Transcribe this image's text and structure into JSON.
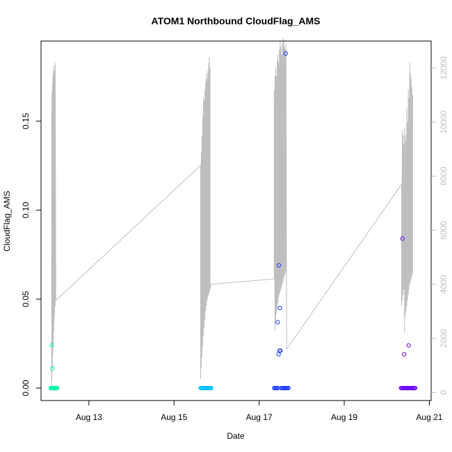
{
  "chart_data": {
    "type": "scatter",
    "title": "ATOM1 Northbound CloudFlag_AMS",
    "xlabel": "Date",
    "ylabel": "CloudFlag_AMS",
    "xlim": [
      "2016-08-11 21:00",
      "2016-08-21 01:00"
    ],
    "ylim": [
      -0.007,
      0.195
    ],
    "x_ticks": [
      "Aug 13",
      "Aug 15",
      "Aug 17",
      "Aug 19",
      "Aug 21"
    ],
    "x_tick_dates": [
      "2016-08-13",
      "2016-08-15",
      "2016-08-17",
      "2016-08-19",
      "2016-08-21"
    ],
    "y_ticks": [
      0.0,
      0.05,
      0.1,
      0.15
    ],
    "y_tick_labels": [
      "0.00",
      "0.05",
      "0.10",
      "0.15"
    ],
    "secondary_axis": {
      "series": "gray line",
      "color": "#bebebe",
      "ylim": [
        -300,
        13000
      ],
      "ticks": [
        0,
        2000,
        4000,
        6000,
        8000,
        10000,
        12000
      ],
      "tick_labels": [
        "0",
        "2000",
        "4000",
        "6000",
        "8000",
        "10000",
        "12000"
      ]
    },
    "line_x": [
      "2016-08-12 03:00",
      "2016-08-12 03:00",
      "2016-08-12 03:10",
      "2016-08-12 03:10",
      "2016-08-12 03:25",
      "2016-08-12 03:25",
      "2016-08-12 03:40",
      "2016-08-12 03:40",
      "2016-08-12 03:55",
      "2016-08-12 03:55",
      "2016-08-12 04:10",
      "2016-08-12 04:10",
      "2016-08-12 04:25",
      "2016-08-12 04:25",
      "2016-08-12 04:40",
      "2016-08-12 04:40",
      "2016-08-12 05:00",
      "2016-08-12 05:00",
      "2016-08-12 05:20",
      "2016-08-15 15:00",
      "2016-08-15 15:00",
      "2016-08-15 15:20",
      "2016-08-15 15:20",
      "2016-08-15 15:45",
      "2016-08-15 15:45",
      "2016-08-15 16:10",
      "2016-08-15 16:10",
      "2016-08-15 16:35",
      "2016-08-15 16:35",
      "2016-08-15 17:00",
      "2016-08-15 17:00",
      "2016-08-15 17:25",
      "2016-08-15 17:25",
      "2016-08-15 17:50",
      "2016-08-15 17:50",
      "2016-08-15 18:15",
      "2016-08-15 18:15",
      "2016-08-15 18:40",
      "2016-08-15 18:40",
      "2016-08-15 19:05",
      "2016-08-15 19:05",
      "2016-08-15 19:30",
      "2016-08-15 19:30",
      "2016-08-15 19:55",
      "2016-08-15 19:55",
      "2016-08-15 20:20",
      "2016-08-15 20:20",
      "2016-08-15 20:40",
      "2016-08-17 08:30",
      "2016-08-17 08:30",
      "2016-08-17 08:55",
      "2016-08-17 08:55",
      "2016-08-17 09:20",
      "2016-08-17 09:20",
      "2016-08-17 09:45",
      "2016-08-17 09:45",
      "2016-08-17 10:10",
      "2016-08-17 10:10",
      "2016-08-17 10:35",
      "2016-08-17 10:35",
      "2016-08-17 11:00",
      "2016-08-17 11:00",
      "2016-08-17 11:25",
      "2016-08-17 11:25",
      "2016-08-17 11:50",
      "2016-08-17 11:50",
      "2016-08-17 12:15",
      "2016-08-17 12:15",
      "2016-08-17 12:40",
      "2016-08-17 12:40",
      "2016-08-17 13:05",
      "2016-08-17 13:05",
      "2016-08-17 13:30",
      "2016-08-17 13:30",
      "2016-08-17 13:55",
      "2016-08-17 13:55",
      "2016-08-17 14:20",
      "2016-08-17 14:20",
      "2016-08-17 14:45",
      "2016-08-17 14:45",
      "2016-08-17 15:10",
      "2016-08-17 15:10",
      "2016-08-17 15:30",
      "2016-08-20 08:20",
      "2016-08-20 08:20",
      "2016-08-20 08:45",
      "2016-08-20 08:45",
      "2016-08-20 09:10",
      "2016-08-20 09:10",
      "2016-08-20 09:35",
      "2016-08-20 09:35",
      "2016-08-20 10:00",
      "2016-08-20 10:00",
      "2016-08-20 10:25",
      "2016-08-20 10:25",
      "2016-08-20 10:50",
      "2016-08-20 10:50",
      "2016-08-20 11:15",
      "2016-08-20 11:15",
      "2016-08-20 11:40",
      "2016-08-20 11:40",
      "2016-08-20 12:05",
      "2016-08-20 12:05",
      "2016-08-20 12:30",
      "2016-08-20 12:30",
      "2016-08-20 12:55",
      "2016-08-20 12:55",
      "2016-08-20 13:20",
      "2016-08-20 13:20",
      "2016-08-20 13:45",
      "2016-08-20 13:45",
      "2016-08-20 14:10",
      "2016-08-20 14:10",
      "2016-08-20 14:35",
      "2016-08-20 14:35",
      "2016-08-20 15:00",
      "2016-08-20 15:00",
      "2016-08-20 15:25"
    ],
    "line_y2": [
      100,
      10400,
      500,
      11100,
      900,
      11400,
      1400,
      11700,
      1800,
      11900,
      2200,
      11800,
      2600,
      12100,
      2900,
      11900,
      3200,
      12200,
      3400,
      8400,
      500,
      8900,
      900,
      9500,
      1300,
      10200,
      1700,
      10900,
      2100,
      10800,
      2400,
      11200,
      2700,
      11500,
      3000,
      11800,
      3200,
      11600,
      3400,
      11900,
      3500,
      12200,
      3600,
      12400,
      3700,
      12000,
      3800,
      4000,
      4200,
      11200,
      2300,
      11700,
      2600,
      12000,
      2900,
      11700,
      3100,
      12300,
      3300,
      12500,
      3500,
      12200,
      3600,
      12700,
      3700,
      13000,
      3800,
      12800,
      3900,
      12500,
      4000,
      12900,
      4100,
      13100,
      4200,
      13000,
      4300,
      12800,
      4400,
      12700,
      4500,
      12900,
      1600,
      7700,
      3200,
      9700,
      3400,
      9500,
      3600,
      9200,
      3800,
      9800,
      2200,
      9500,
      2800,
      9300,
      3000,
      10500,
      3200,
      10000,
      3400,
      11200,
      3600,
      10900,
      3800,
      12200,
      4000,
      11800,
      4100,
      11600,
      4200,
      11300,
      4300,
      11000,
      4400
    ],
    "series": [
      {
        "color": "#00f5a8",
        "x": [
          "2016-08-12 02:30",
          "2016-08-12 02:30",
          "2016-08-12 03:00",
          "2016-08-12 03:00",
          "2016-08-12 03:20",
          "2016-08-12 03:20",
          "2016-08-12 03:40",
          "2016-08-12 03:50",
          "2016-08-12 04:00",
          "2016-08-12 04:20",
          "2016-08-12 04:40",
          "2016-08-12 05:00",
          "2016-08-12 05:20",
          "2016-08-12 05:40",
          "2016-08-12 06:00"
        ],
        "y": [
          0,
          0,
          0,
          0.024,
          0,
          0.011,
          0,
          0,
          0,
          0,
          0,
          0,
          0,
          0,
          0
        ]
      },
      {
        "color": "#00bfff",
        "x": [
          "2016-08-15 15:00",
          "2016-08-15 15:30",
          "2016-08-15 16:00",
          "2016-08-15 16:30",
          "2016-08-15 17:00",
          "2016-08-15 17:30",
          "2016-08-15 18:00",
          "2016-08-15 18:30",
          "2016-08-15 19:00",
          "2016-08-15 19:30",
          "2016-08-15 20:00",
          "2016-08-15 20:30",
          "2016-08-15 21:00"
        ],
        "y": [
          0,
          0,
          0,
          0,
          0,
          0,
          0,
          0,
          0,
          0,
          0,
          0,
          0
        ]
      },
      {
        "color": "#1a3bff",
        "x": [
          "2016-08-17 08:30",
          "2016-08-17 09:00",
          "2016-08-17 09:30",
          "2016-08-17 10:00",
          "2016-08-17 10:30",
          "2016-08-17 10:40",
          "2016-08-17 11:00",
          "2016-08-17 11:10",
          "2016-08-17 11:30",
          "2016-08-17 11:40",
          "2016-08-17 12:00",
          "2016-08-17 12:30",
          "2016-08-17 13:00",
          "2016-08-17 13:30",
          "2016-08-17 14:00",
          "2016-08-17 14:30",
          "2016-08-17 15:00",
          "2016-08-17 15:30",
          "2016-08-17 16:00",
          "2016-08-17 16:30",
          "2016-08-17 15:00"
        ],
        "y": [
          0,
          0,
          0,
          0,
          0.037,
          0,
          0.019,
          0.069,
          0.021,
          0.045,
          0.021,
          0,
          0,
          0,
          0,
          0,
          0,
          0,
          0,
          0,
          0.188
        ]
      },
      {
        "color": "#6a00ff",
        "x": [
          "2016-08-20 08:00",
          "2016-08-20 08:30",
          "2016-08-20 09:00",
          "2016-08-20 09:30",
          "2016-08-20 10:00",
          "2016-08-20 10:30",
          "2016-08-20 11:00",
          "2016-08-20 11:30",
          "2016-08-20 12:00",
          "2016-08-20 12:30",
          "2016-08-20 13:00",
          "2016-08-20 13:30",
          "2016-08-20 14:00",
          "2016-08-20 14:30",
          "2016-08-20 15:00",
          "2016-08-20 15:30",
          "2016-08-20 16:00",
          "2016-08-20 08:50",
          "2016-08-20 09:50",
          "2016-08-20 12:20"
        ],
        "y": [
          0,
          0,
          0,
          0,
          0,
          0,
          0,
          0,
          0,
          0,
          0,
          0,
          0,
          0,
          0,
          0,
          0,
          0.084,
          0.019,
          0.024
        ]
      }
    ]
  }
}
